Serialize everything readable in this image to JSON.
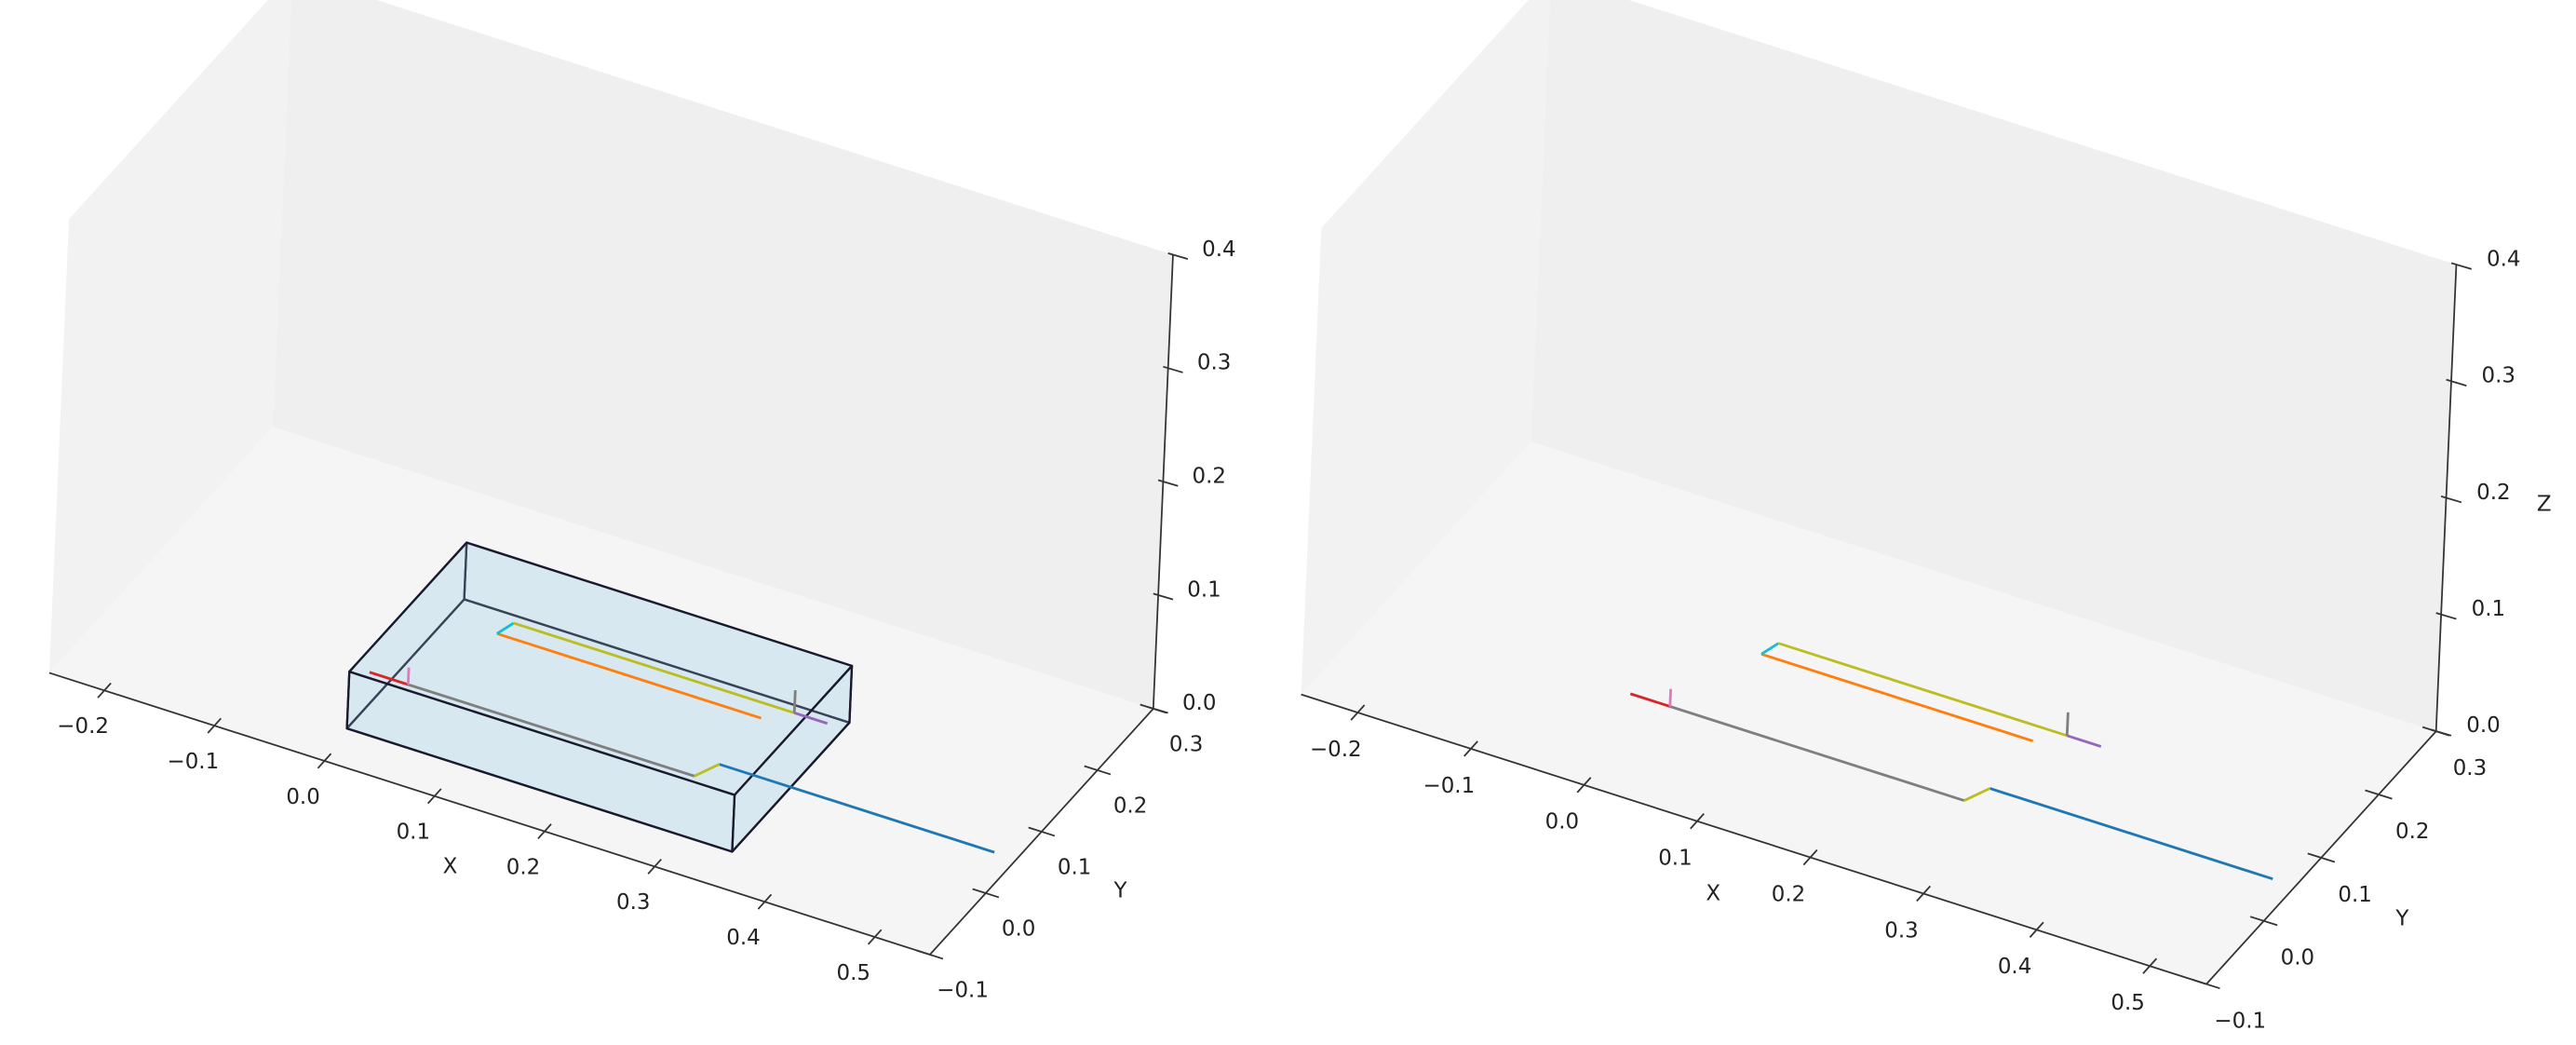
{
  "chart_data": [
    {
      "type": "line3d",
      "xlabel": "X",
      "ylabel": "Y",
      "xlim": [
        -0.25,
        0.55
      ],
      "ylim": [
        -0.1,
        0.3
      ],
      "zlim": [
        0,
        0.4
      ],
      "xticks": [
        {
          "value": -0.2,
          "label": "−0.2"
        },
        {
          "value": -0.1,
          "label": "−0.1"
        },
        {
          "value": 0,
          "label": "0.0"
        },
        0.1,
        0.2,
        0.3,
        0.4,
        0.5
      ],
      "yticks": [
        {
          "value": -0.1,
          "label": "−0.1"
        },
        {
          "value": 0,
          "label": "0.0"
        },
        0.1,
        0.2,
        0.3
      ],
      "zticks": [
        {
          "value": 0,
          "label": "0.0"
        },
        0.1,
        0.2,
        0.3,
        0.4
      ],
      "box": {
        "x": [
          -0.005,
          0.345
        ],
        "y": [
          -0.05,
          0.16
        ],
        "z": [
          0,
          0.05
        ],
        "color": "#a8d8e8",
        "edgecolor": "#1a1a2e"
      },
      "series": [
        {
          "color": "#1f77b4",
          "x": [
            0.28,
            0.53
          ],
          "y": [
            0.055,
            0.055
          ],
          "z": [
            0,
            0
          ]
        },
        {
          "color": "#bcbd22",
          "x": [
            0.27,
            0.28
          ],
          "y": [
            0.03,
            0.055
          ],
          "z": [
            0,
            0
          ]
        },
        {
          "color": "#7f7f7f",
          "x": [
            0.01,
            0.27
          ],
          "y": [
            0.03,
            0.03
          ],
          "z": [
            0,
            0
          ]
        },
        {
          "color": "#d62728",
          "x": [
            -0.025,
            0.01
          ],
          "y": [
            0.03,
            0.03
          ],
          "z": [
            0,
            0
          ]
        },
        {
          "color": "#e377c2",
          "x": [
            0.01,
            0.01
          ],
          "y": [
            0.03,
            0.03
          ],
          "z": [
            0,
            0.015
          ]
        },
        {
          "color": "#ff7f0e",
          "x": [
            0.04,
            0.28
          ],
          "y": [
            0.13,
            0.13
          ],
          "z": [
            0,
            0
          ]
        },
        {
          "color": "#17becf",
          "x": [
            0.04,
            0.045
          ],
          "y": [
            0.13,
            0.15
          ],
          "z": [
            0,
            0
          ]
        },
        {
          "color": "#bcbd22",
          "x": [
            0.045,
            0.3
          ],
          "y": [
            0.15,
            0.15
          ],
          "z": [
            0,
            0
          ]
        },
        {
          "color": "#7f7f7f",
          "x": [
            0.3,
            0.3
          ],
          "y": [
            0.15,
            0.15
          ],
          "z": [
            0,
            0.02
          ]
        },
        {
          "color": "#9467bd",
          "x": [
            0.3,
            0.33
          ],
          "y": [
            0.15,
            0.15
          ],
          "z": [
            0,
            0
          ]
        }
      ]
    },
    {
      "type": "line3d",
      "xlabel": "X",
      "ylabel": "Y",
      "zlabel": "Z",
      "xlim": [
        -0.25,
        0.55
      ],
      "ylim": [
        -0.1,
        0.3
      ],
      "zlim": [
        0,
        0.4
      ],
      "xticks": [
        {
          "value": -0.2,
          "label": "−0.2"
        },
        {
          "value": -0.1,
          "label": "−0.1"
        },
        {
          "value": 0,
          "label": "0.0"
        },
        0.1,
        0.2,
        0.3,
        0.4,
        0.5
      ],
      "yticks": [
        {
          "value": -0.1,
          "label": "−0.1"
        },
        {
          "value": 0,
          "label": "0.0"
        },
        0.1,
        0.2,
        0.3
      ],
      "zticks": [
        {
          "value": 0,
          "label": "0.0"
        },
        0.1,
        0.2,
        0.3,
        0.4
      ],
      "series": [
        {
          "color": "#1f77b4",
          "x": [
            0.28,
            0.53
          ],
          "y": [
            0.055,
            0.055
          ],
          "z": [
            0,
            0
          ]
        },
        {
          "color": "#bcbd22",
          "x": [
            0.27,
            0.28
          ],
          "y": [
            0.03,
            0.055
          ],
          "z": [
            0,
            0
          ]
        },
        {
          "color": "#7f7f7f",
          "x": [
            0.01,
            0.27
          ],
          "y": [
            0.03,
            0.03
          ],
          "z": [
            0,
            0
          ]
        },
        {
          "color": "#d62728",
          "x": [
            -0.025,
            0.01
          ],
          "y": [
            0.03,
            0.03
          ],
          "z": [
            0,
            0
          ]
        },
        {
          "color": "#e377c2",
          "x": [
            0.01,
            0.01
          ],
          "y": [
            0.03,
            0.03
          ],
          "z": [
            0,
            0.015
          ]
        },
        {
          "color": "#ff7f0e",
          "x": [
            0.04,
            0.28
          ],
          "y": [
            0.13,
            0.13
          ],
          "z": [
            0,
            0
          ]
        },
        {
          "color": "#17becf",
          "x": [
            0.04,
            0.045
          ],
          "y": [
            0.13,
            0.15
          ],
          "z": [
            0,
            0
          ]
        },
        {
          "color": "#bcbd22",
          "x": [
            0.045,
            0.3
          ],
          "y": [
            0.15,
            0.15
          ],
          "z": [
            0,
            0
          ]
        },
        {
          "color": "#7f7f7f",
          "x": [
            0.3,
            0.3
          ],
          "y": [
            0.15,
            0.15
          ],
          "z": [
            0,
            0.02
          ]
        },
        {
          "color": "#9467bd",
          "x": [
            0.3,
            0.33
          ],
          "y": [
            0.15,
            0.15
          ],
          "z": [
            0,
            0
          ]
        }
      ]
    }
  ]
}
